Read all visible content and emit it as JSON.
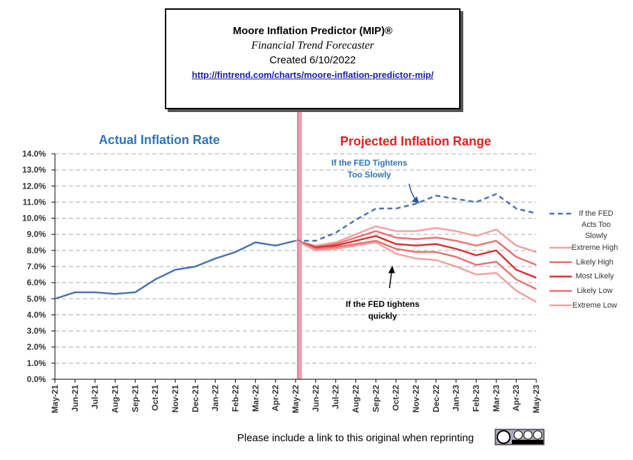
{
  "chart_data": {
    "type": "line",
    "title": "Moore Inflation Predictor (MIP)®",
    "subtitle": "Financial Trend Forecaster",
    "created": "Created  6/10/2022",
    "url": "http://fintrend.com/charts/moore-inflation-predictor-mip/",
    "left_heading": "Actual Inflation Rate",
    "right_heading": "Projected Inflation Range",
    "annotations": [
      "If the FED Tightens Too Slowly",
      "If the FED tightens quickly"
    ],
    "footer": "Please include a link to this original when reprinting",
    "categories": [
      "May-21",
      "Jun-21",
      "Jul-21",
      "Aug-21",
      "Sep-21",
      "Oct-21",
      "Nov-21",
      "Dec-21",
      "Jan-22",
      "Feb-22",
      "Mar-22",
      "Apr-22",
      "May-22",
      "Jun-22",
      "Jul-22",
      "Aug-22",
      "Sep-22",
      "Oct-22",
      "Nov-22",
      "Dec-22",
      "Jan-23",
      "Feb-23",
      "Mar-23",
      "Apr-23",
      "May-23"
    ],
    "ylim": [
      0,
      14
    ],
    "yticks": [
      {
        "value": 0,
        "label": "0.0%"
      },
      {
        "value": 1,
        "label": "1.0%"
      },
      {
        "value": 2,
        "label": "2.0%"
      },
      {
        "value": 3,
        "label": "3.0%"
      },
      {
        "value": 4,
        "label": "4.0%"
      },
      {
        "value": 5,
        "label": "5.0%"
      },
      {
        "value": 6,
        "label": "6.0%"
      },
      {
        "value": 7,
        "label": "7.0%"
      },
      {
        "value": 8,
        "label": "8.0%"
      },
      {
        "value": 9,
        "label": "9.0%"
      },
      {
        "value": 10,
        "label": "10.0%"
      },
      {
        "value": 11,
        "label": "11.0%"
      },
      {
        "value": 12,
        "label": "12.0%"
      },
      {
        "value": 13,
        "label": "13.0%"
      },
      {
        "value": 14,
        "label": "14.0%"
      }
    ],
    "grid": true,
    "legend": "right",
    "series": [
      {
        "color": "#4a72b0",
        "style": "solid",
        "values": [
          5.0,
          5.4,
          5.4,
          5.3,
          5.4,
          6.2,
          6.8,
          7.0,
          7.5,
          7.9,
          8.5,
          8.3,
          8.6,
          null,
          null,
          null,
          null,
          null,
          null,
          null,
          null,
          null,
          null,
          null,
          null
        ]
      },
      {
        "name": "If the FED Acts Too Slowly",
        "color": "#4a72b0",
        "style": "dashed",
        "values": [
          null,
          null,
          null,
          null,
          null,
          null,
          null,
          null,
          null,
          null,
          null,
          null,
          8.6,
          8.6,
          9.1,
          9.9,
          10.6,
          10.6,
          10.9,
          11.4,
          11.2,
          11.0,
          11.5,
          10.6,
          10.3
        ]
      },
      {
        "name": "Extreme High",
        "color": "#f2a0a0",
        "style": "solid",
        "values": [
          null,
          null,
          null,
          null,
          null,
          null,
          null,
          null,
          null,
          null,
          null,
          null,
          8.6,
          8.3,
          8.5,
          9.0,
          9.5,
          9.2,
          9.2,
          9.4,
          9.2,
          8.9,
          9.3,
          8.3,
          7.9
        ]
      },
      {
        "name": "Likely High",
        "color": "#ea7070",
        "style": "solid",
        "values": [
          null,
          null,
          null,
          null,
          null,
          null,
          null,
          null,
          null,
          null,
          null,
          null,
          8.6,
          8.2,
          8.4,
          8.8,
          9.2,
          8.8,
          8.7,
          8.8,
          8.6,
          8.3,
          8.6,
          7.6,
          7.1
        ]
      },
      {
        "name": "Most Likely",
        "color": "#d93030",
        "style": "solid",
        "values": [
          null,
          null,
          null,
          null,
          null,
          null,
          null,
          null,
          null,
          null,
          null,
          null,
          8.6,
          8.2,
          8.3,
          8.6,
          8.9,
          8.4,
          8.3,
          8.4,
          8.1,
          7.7,
          8.0,
          6.8,
          6.3
        ]
      },
      {
        "name": "Likely Low",
        "color": "#ea7070",
        "style": "solid",
        "values": [
          null,
          null,
          null,
          null,
          null,
          null,
          null,
          null,
          null,
          null,
          null,
          null,
          8.6,
          8.1,
          8.2,
          8.4,
          8.6,
          8.1,
          7.9,
          7.9,
          7.6,
          7.1,
          7.3,
          6.2,
          5.6
        ]
      },
      {
        "name": "Extreme Low",
        "color": "#f2a0a0",
        "style": "solid",
        "values": [
          null,
          null,
          null,
          null,
          null,
          null,
          null,
          null,
          null,
          null,
          null,
          null,
          8.6,
          8.0,
          8.1,
          8.3,
          8.5,
          7.8,
          7.5,
          7.4,
          7.0,
          6.5,
          6.6,
          5.5,
          4.8
        ]
      }
    ]
  }
}
